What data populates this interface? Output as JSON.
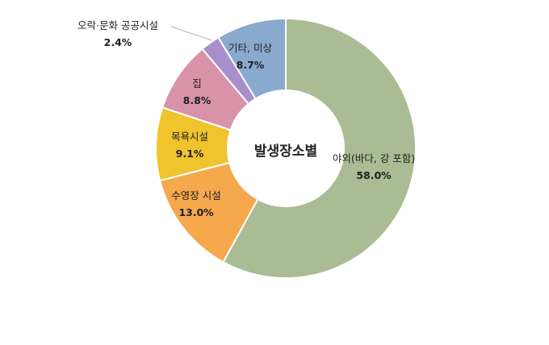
{
  "chart_data": {
    "type": "pie",
    "variant": "donut",
    "center_label": "발생장소별",
    "categories": [
      "야외(바다, 강 포함)",
      "수영장 시설",
      "목욕시설",
      "집",
      "오락·문화 공공시설",
      "기타, 미상"
    ],
    "values": [
      58.0,
      13.0,
      9.1,
      8.8,
      2.4,
      8.7
    ],
    "value_labels": [
      "58.0%",
      "13.0%",
      "9.1%",
      "8.8%",
      "2.4%",
      "8.7%"
    ],
    "colors": [
      "#a9bc94",
      "#f6a84d",
      "#efc42c",
      "#d893a9",
      "#a88fcb",
      "#8aa9cf"
    ],
    "start_angle_deg": 0,
    "direction": "clockwise",
    "legend": "none"
  }
}
